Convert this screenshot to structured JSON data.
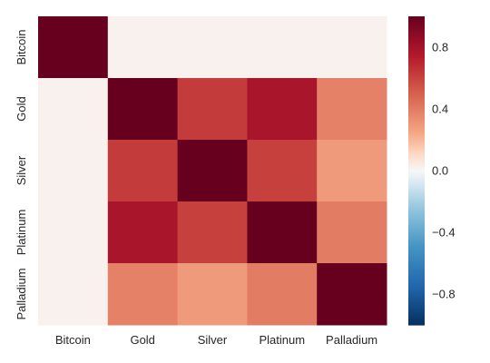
{
  "chart_data": {
    "type": "heatmap",
    "title": "",
    "xlabel": "",
    "ylabel": "",
    "categories": [
      "Bitcoin",
      "Gold",
      "Silver",
      "Platinum",
      "Palladium"
    ],
    "rows": [
      "Bitcoin",
      "Gold",
      "Silver",
      "Platinum",
      "Palladium"
    ],
    "values": [
      [
        1.0,
        0.02,
        0.02,
        0.02,
        0.02
      ],
      [
        0.02,
        1.0,
        0.63,
        0.78,
        0.38
      ],
      [
        0.02,
        0.63,
        1.0,
        0.61,
        0.29
      ],
      [
        0.02,
        0.78,
        0.61,
        1.0,
        0.4
      ],
      [
        0.02,
        0.38,
        0.29,
        0.4,
        1.0
      ]
    ],
    "colorbar": {
      "vmin": -1,
      "vmax": 1,
      "ticks": [
        0.8,
        0.4,
        0.0,
        -0.4,
        -0.8
      ],
      "tick_labels": [
        "0.8",
        "0.4",
        "0.0",
        "−0.4",
        "−0.8"
      ],
      "colormap": "RdBu_r"
    }
  }
}
